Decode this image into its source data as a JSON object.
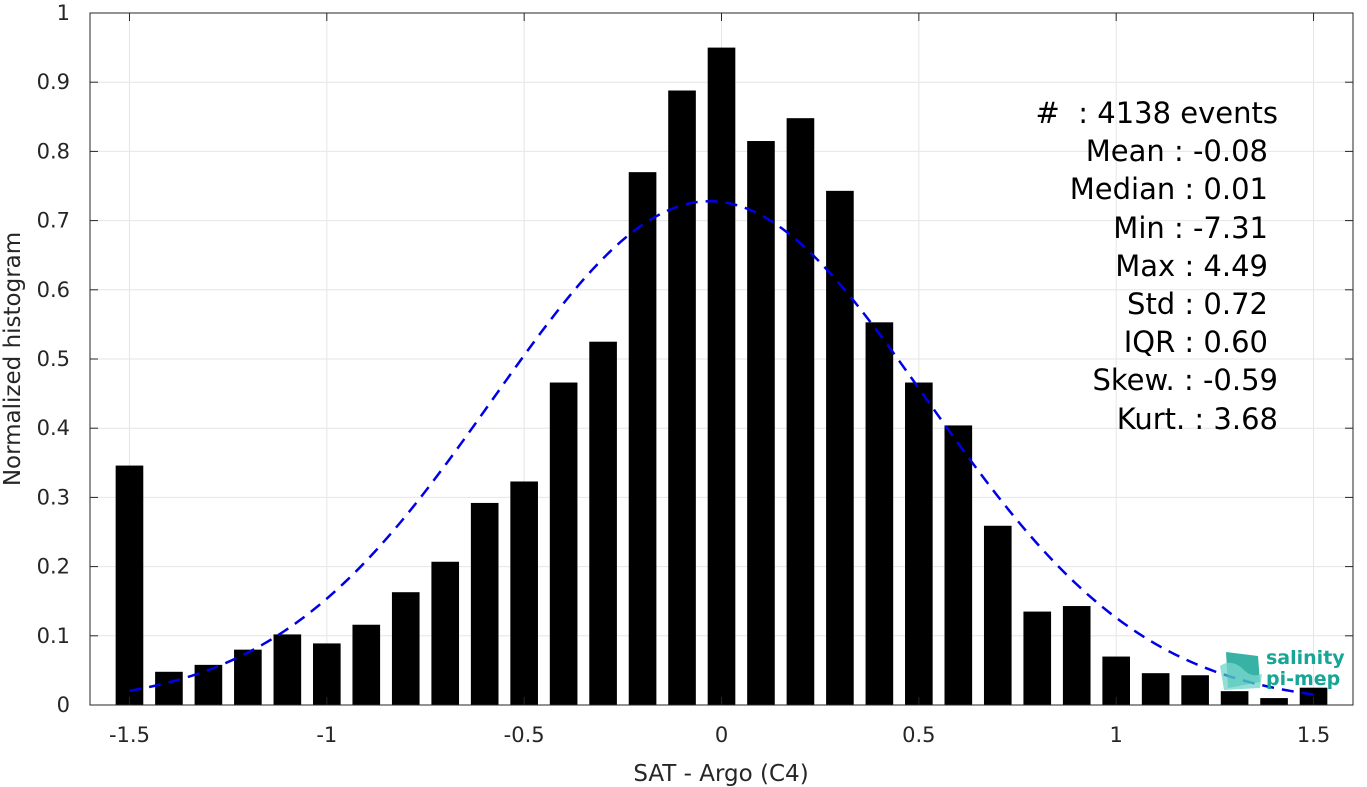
{
  "chart_data": {
    "type": "bar",
    "xlabel": "SAT - Argo (C4)",
    "ylabel": "Normalized histogram",
    "xlim": [
      -1.6,
      1.6
    ],
    "ylim": [
      0,
      1
    ],
    "grid": true,
    "x_ticks": [
      "-1.5",
      "-1",
      "-0.5",
      "0",
      "0.5",
      "1",
      "1.5"
    ],
    "y_ticks": [
      "0",
      "0.1",
      "0.2",
      "0.3",
      "0.4",
      "0.5",
      "0.6",
      "0.7",
      "0.8",
      "0.9",
      "1"
    ],
    "bar_color": "#000000",
    "bars": {
      "x": [
        -1.5,
        -1.4,
        -1.3,
        -1.2,
        -1.1,
        -1.0,
        -0.9,
        -0.8,
        -0.7,
        -0.6,
        -0.5,
        -0.4,
        -0.3,
        -0.2,
        -0.1,
        0.0,
        0.1,
        0.2,
        0.3,
        0.4,
        0.5,
        0.6,
        0.7,
        0.8,
        0.9,
        1.0,
        1.1,
        1.2,
        1.3,
        1.4,
        1.5
      ],
      "values": [
        0.346,
        0.048,
        0.058,
        0.08,
        0.102,
        0.089,
        0.116,
        0.163,
        0.207,
        0.292,
        0.323,
        0.466,
        0.525,
        0.77,
        0.888,
        0.95,
        0.815,
        0.848,
        0.743,
        0.553,
        0.466,
        0.404,
        0.259,
        0.135,
        0.143,
        0.07,
        0.046,
        0.043,
        0.02,
        0.01,
        0.025
      ]
    },
    "fit": {
      "type": "gaussian",
      "style": "dashed",
      "color": "#0000e6",
      "mean": -0.03,
      "std": 0.55,
      "peak": 0.728
    }
  },
  "stats": {
    "count": "#  : 4138 events",
    "mean": "Mean : -0.08",
    "median": "Median : 0.01",
    "min": "Min : -7.31",
    "max": "Max : 4.49",
    "std": "Std : 0.72",
    "iqr": "IQR : 0.60",
    "skew": "Skew. : -0.59",
    "kurt": "Kurt. : 3.68"
  },
  "logo": {
    "line1": "salinity",
    "line2": "pi-mep",
    "icon": "salinity-logo-icon",
    "color": "#16a596"
  }
}
